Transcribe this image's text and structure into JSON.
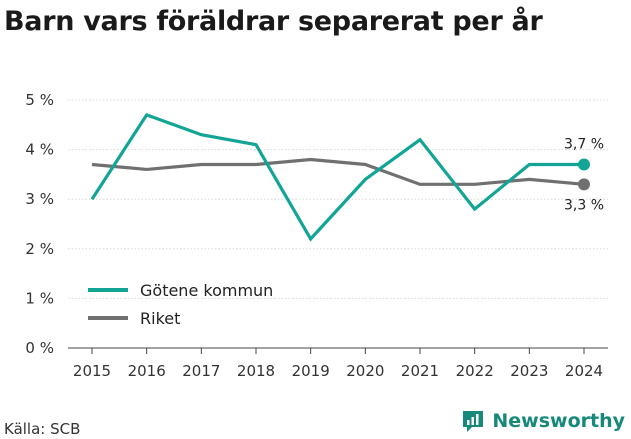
{
  "title": "Barn vars föräldrar separerat per år",
  "source": "Källa: SCB",
  "brand": {
    "name": "Newsworthy",
    "color": "#17897a",
    "icon": "newsworthy-logo-icon"
  },
  "chart_data": {
    "type": "line",
    "x": [
      "2015",
      "2016",
      "2017",
      "2018",
      "2019",
      "2020",
      "2021",
      "2022",
      "2023",
      "2024"
    ],
    "ylim": [
      0,
      5
    ],
    "yticks": [
      {
        "value": 0,
        "label": "0 %"
      },
      {
        "value": 1,
        "label": "1 %"
      },
      {
        "value": 2,
        "label": "2 %"
      },
      {
        "value": 3,
        "label": "3 %"
      },
      {
        "value": 4,
        "label": "4 %"
      },
      {
        "value": 5,
        "label": "5 %"
      }
    ],
    "grid": true,
    "legend_position": "bottom-left",
    "series": [
      {
        "name": "Götene kommun",
        "color": "#12a596",
        "values": [
          3.0,
          4.7,
          4.3,
          4.1,
          2.2,
          3.4,
          4.2,
          2.8,
          3.7,
          3.7
        ],
        "end_label": "3,7 %"
      },
      {
        "name": "Riket",
        "color": "#707070",
        "values": [
          3.7,
          3.6,
          3.7,
          3.7,
          3.8,
          3.7,
          3.3,
          3.3,
          3.4,
          3.3
        ],
        "end_label": "3,3 %"
      }
    ]
  }
}
